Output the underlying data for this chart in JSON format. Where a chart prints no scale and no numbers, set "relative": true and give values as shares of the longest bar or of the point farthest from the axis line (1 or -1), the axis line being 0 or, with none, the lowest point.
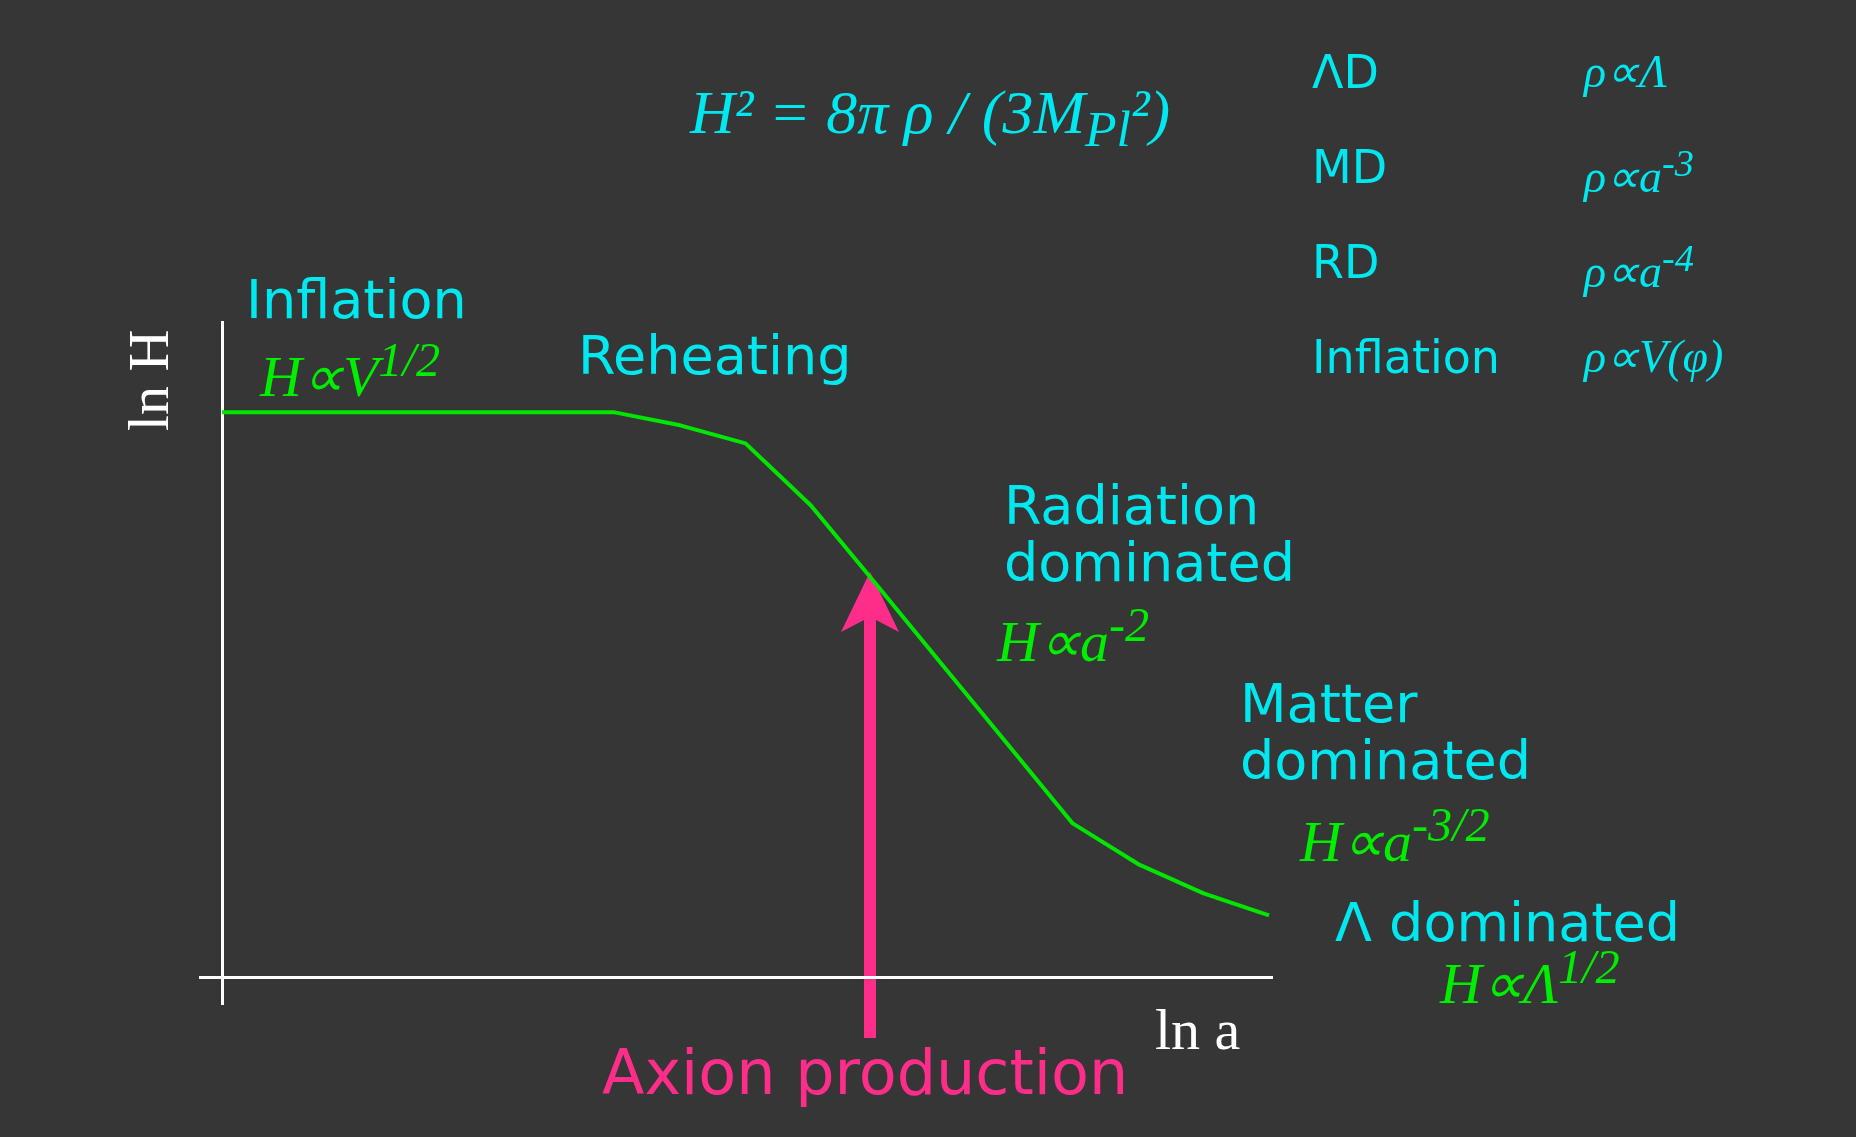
{
  "chart_data": {
    "type": "line",
    "relative": true,
    "xlabel": "ln a",
    "ylabel": "ln H",
    "categories": [
      null,
      null,
      null,
      null,
      null,
      null,
      null,
      null,
      null,
      null,
      null,
      null,
      null,
      null,
      null,
      null,
      null
    ],
    "series": [
      {
        "color": "#00e600",
        "values": [
          1,
          1,
          1,
          1,
          1,
          1,
          1,
          0.977,
          0.945,
          0.835,
          0.695,
          0.554,
          0.413,
          0.272,
          0.2,
          0.148,
          0.109
        ]
      }
    ],
    "marker": "none",
    "line_style": "solid",
    "annotations": [
      "H² = 8π ρ / (3M$_{Pl}$²)",
      "ΛD",
      "ρ∝Λ",
      "MD",
      "ρ∝a$^{-3}$",
      "RD",
      "ρ∝a$^{-4}$",
      "Inflation",
      "ρ∝V(φ)",
      "Inflation",
      "H∝V$^{1/2}$",
      "Reheating",
      "Radiation dominated",
      "H∝a$^{-2}$",
      "Matter dominated",
      "H∝a$^{-3/2}$",
      "Λ dominated",
      "H∝Λ$^{1/2}$",
      "Axion production"
    ]
  }
}
